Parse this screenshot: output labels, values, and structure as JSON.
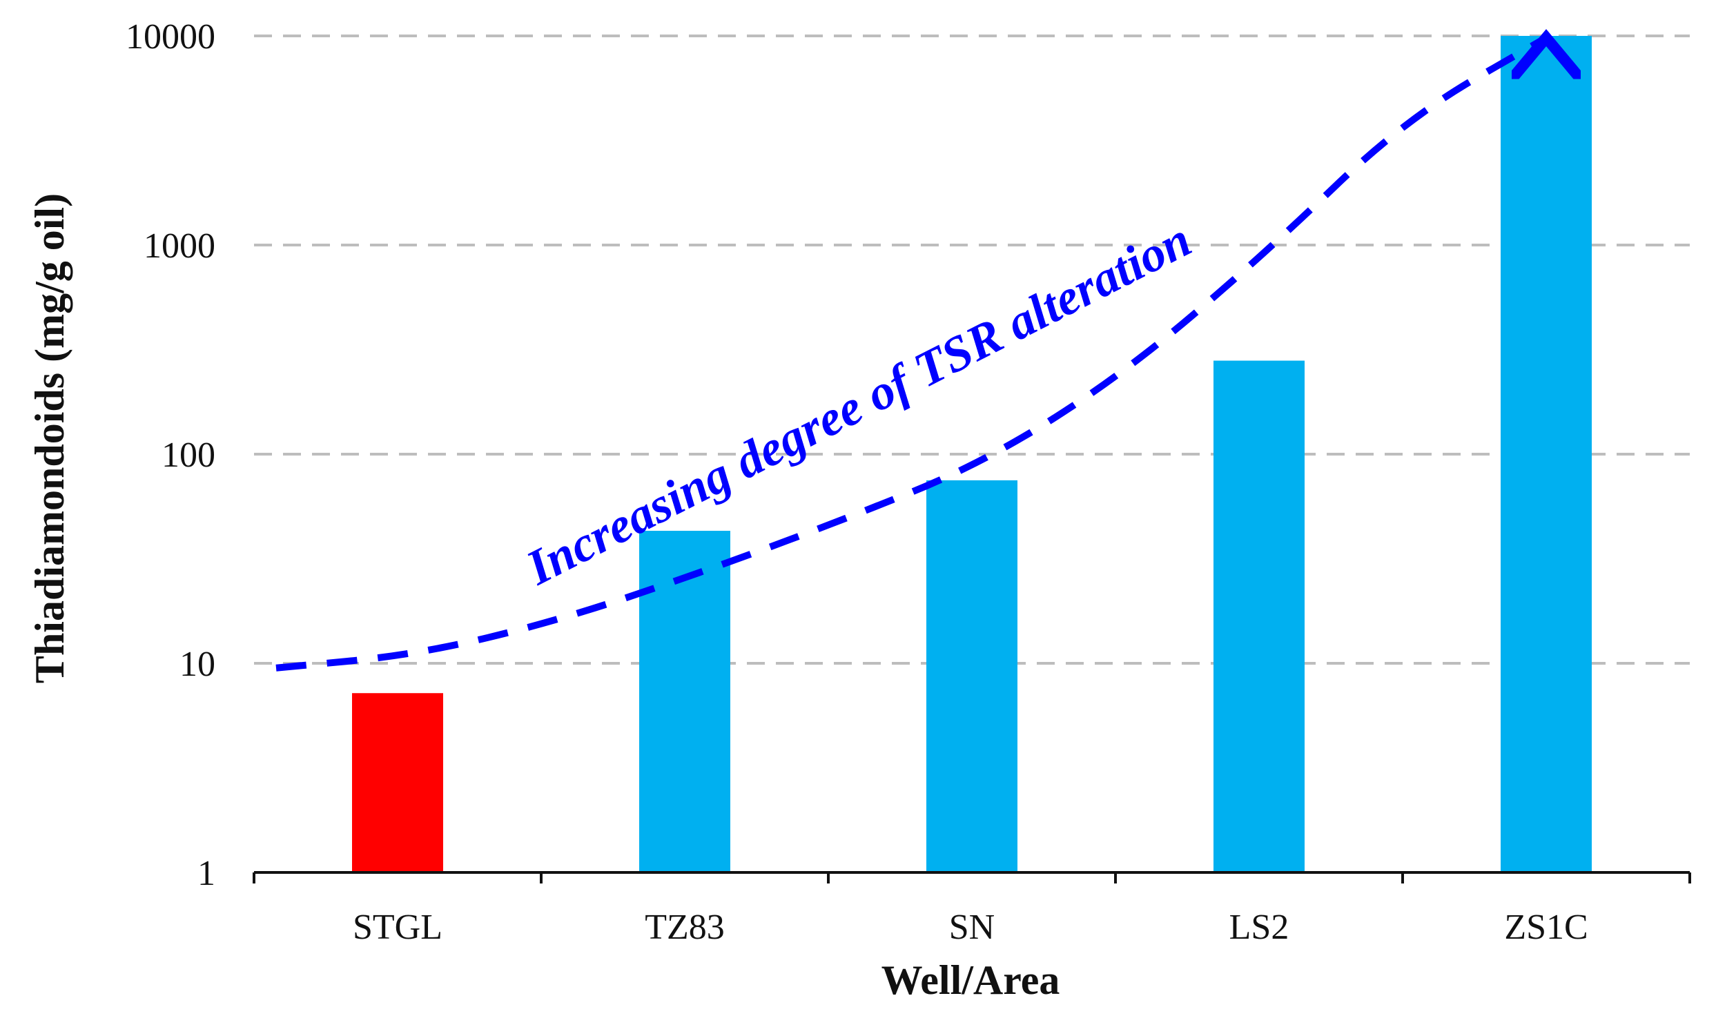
{
  "chart_data": {
    "type": "bar",
    "title": "",
    "xlabel": "Well/Area",
    "ylabel": "Thiadiamondoids  (mg/g oil)",
    "yscale": "log",
    "ylim": [
      1,
      10000
    ],
    "yticks": [
      1,
      10,
      100,
      1000,
      10000
    ],
    "ytick_labels": [
      "1",
      "10",
      "100",
      "1000",
      "10000"
    ],
    "grid": "horizontal dashed",
    "categories": [
      "STGL",
      "TZ83",
      "SN",
      "LS2",
      "ZS1C"
    ],
    "values": [
      7.2,
      43,
      75,
      280,
      10000
    ],
    "bar_colors": [
      "#ff0000",
      "#00b0f0",
      "#00b0f0",
      "#00b0f0",
      "#00b0f0"
    ],
    "annotation": {
      "text": "Increasing degree of TSR alteration",
      "color": "#0000ff",
      "trend_values": [
        9.5,
        11,
        16,
        27,
        48,
        90,
        240,
        900,
        4000,
        9800
      ]
    },
    "colors": {
      "grid": "#bdbdbd",
      "axis": "#111111"
    }
  }
}
